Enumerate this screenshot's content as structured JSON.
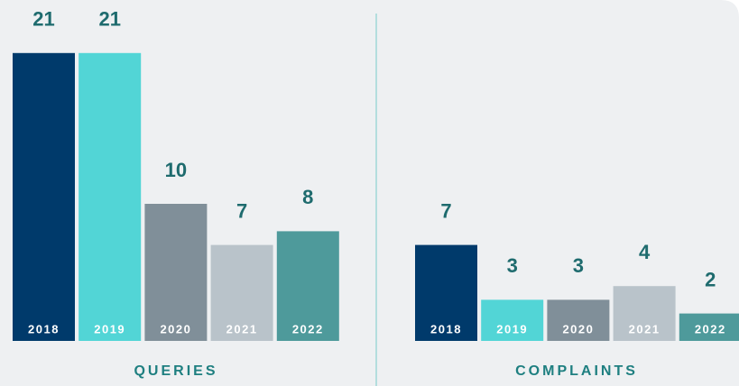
{
  "chart_data": [
    {
      "type": "bar",
      "title": "QUERIES",
      "categories": [
        "2018",
        "2019",
        "2020",
        "2021",
        "2022"
      ],
      "values": [
        21,
        21,
        10,
        7,
        8
      ],
      "colors": [
        "#003a6b",
        "#52d5d6",
        "#808f99",
        "#b9c3ca",
        "#4e9a9b"
      ]
    },
    {
      "type": "bar",
      "title": "COMPLAINTS",
      "categories": [
        "2018",
        "2019",
        "2020",
        "2021",
        "2022"
      ],
      "values": [
        7,
        3,
        3,
        4,
        2
      ],
      "colors": [
        "#003a6b",
        "#52d5d6",
        "#808f99",
        "#b9c3ca",
        "#4e9a9b"
      ]
    }
  ]
}
